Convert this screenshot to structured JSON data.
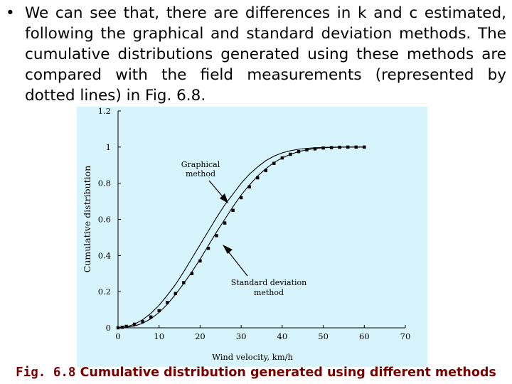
{
  "slide": {
    "bullet_symbol": "•",
    "bullet_text": "We can see that, there are differences in k and c estimated, following the graphical and standard deviation methods. The cumulative distributions generated using these methods are compared with the field measurements (represented by dotted lines) in Fig. 6.8.",
    "caption_number": "Fig. 6.8",
    "caption_text": "Cumulative distribution generated using different methods"
  },
  "chart_data": {
    "type": "line",
    "xlabel": "Wind velocity, km/h",
    "ylabel": "Cumulative distribution",
    "xlim": [
      0,
      70
    ],
    "ylim": [
      0,
      1.2
    ],
    "x_ticks": [
      "0",
      "10",
      "20",
      "30",
      "40",
      "50",
      "60",
      "70"
    ],
    "y_ticks": [
      "0",
      "0.2",
      "0.4",
      "0.6",
      "0.8",
      "1",
      "1.2"
    ],
    "grid": false,
    "annotations": [
      {
        "label_lines": [
          "Graphical",
          "method"
        ],
        "target": "Graphical method curve"
      },
      {
        "label_lines": [
          "Standard deviation",
          "method"
        ],
        "target": "Standard deviation method curve"
      }
    ],
    "series": [
      {
        "style": "solid",
        "x": [
          0,
          2,
          4,
          6,
          8,
          10,
          12,
          14,
          16,
          18,
          20,
          22,
          24,
          26,
          28,
          30,
          32,
          34,
          36,
          38,
          40,
          42,
          44,
          46,
          48,
          50,
          52,
          54,
          56,
          58,
          60
        ],
        "y": [
          0,
          0.005,
          0.02,
          0.045,
          0.08,
          0.125,
          0.18,
          0.24,
          0.31,
          0.385,
          0.46,
          0.535,
          0.61,
          0.68,
          0.74,
          0.8,
          0.85,
          0.89,
          0.925,
          0.95,
          0.968,
          0.98,
          0.988,
          0.993,
          0.996,
          0.998,
          0.999,
          1,
          1,
          1,
          1
        ]
      },
      {
        "style": "solid",
        "x": [
          0,
          2,
          4,
          6,
          8,
          10,
          12,
          14,
          16,
          18,
          20,
          22,
          24,
          26,
          28,
          30,
          32,
          34,
          36,
          38,
          40,
          42,
          44,
          46,
          48,
          50,
          52,
          54,
          56,
          58,
          60
        ],
        "y": [
          0,
          0.003,
          0.01,
          0.025,
          0.05,
          0.085,
          0.13,
          0.185,
          0.245,
          0.31,
          0.38,
          0.455,
          0.53,
          0.6,
          0.67,
          0.735,
          0.79,
          0.84,
          0.88,
          0.915,
          0.94,
          0.96,
          0.975,
          0.985,
          0.992,
          0.996,
          0.998,
          0.999,
          1,
          1,
          1
        ]
      },
      {
        "style": "markers",
        "x": [
          0,
          1,
          2,
          4,
          6,
          8,
          10,
          12,
          14,
          16,
          18,
          20,
          22,
          24,
          26,
          28,
          30,
          32,
          34,
          36,
          38,
          40,
          42,
          44,
          46,
          48,
          50,
          52,
          54,
          56,
          58,
          60
        ],
        "y": [
          0,
          0.003,
          0.008,
          0.02,
          0.035,
          0.06,
          0.095,
          0.14,
          0.19,
          0.25,
          0.3,
          0.37,
          0.44,
          0.51,
          0.58,
          0.65,
          0.72,
          0.78,
          0.83,
          0.87,
          0.91,
          0.94,
          0.96,
          0.975,
          0.985,
          0.99,
          0.995,
          0.997,
          0.999,
          1,
          1,
          1
        ]
      }
    ]
  }
}
